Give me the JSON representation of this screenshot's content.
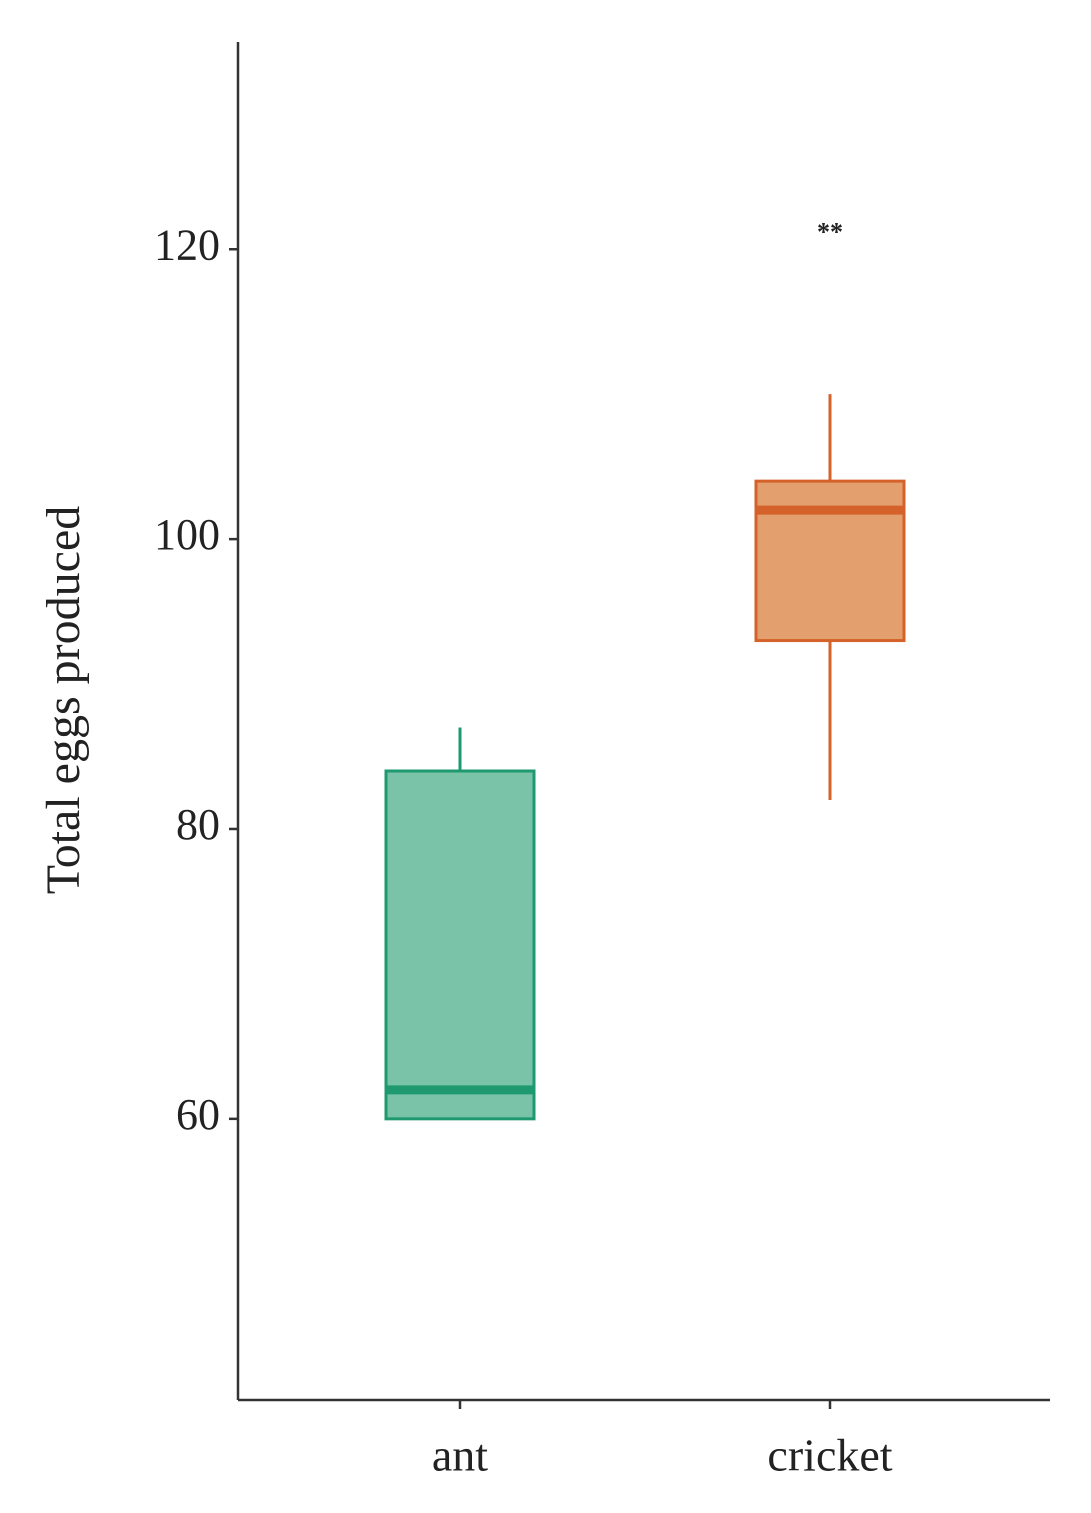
{
  "chart_data": {
    "type": "box",
    "y_label": "Total eggs produced",
    "categories": [
      "ant",
      "cricket"
    ],
    "boxes": [
      {
        "min": 60,
        "q1": 60,
        "median": 62,
        "q3": 84,
        "max": 87,
        "color": "#1f9a70",
        "fill": "#7ac3a9"
      },
      {
        "min": 82,
        "q1": 93,
        "median": 102,
        "q3": 104,
        "max": 110,
        "color": "#d4622a",
        "fill": "#e39f6e"
      }
    ],
    "annotations": [
      {
        "text": "**",
        "y": 121
      }
    ],
    "ylim": [
      40.6,
      134.3
    ],
    "yticks": [
      60,
      80,
      100,
      120
    ],
    "grid": false
  }
}
